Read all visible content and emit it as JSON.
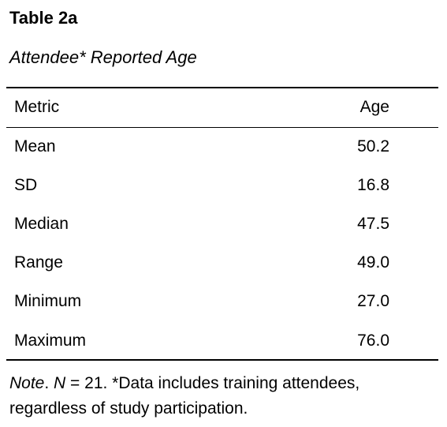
{
  "table": {
    "label": "Table 2a",
    "title": "Attendee* Reported Age",
    "columns": {
      "metric": "Metric",
      "age": "Age"
    },
    "rows": [
      {
        "metric": "Mean",
        "age": "50.2"
      },
      {
        "metric": "SD",
        "age": "16.8"
      },
      {
        "metric": "Median",
        "age": "47.5"
      },
      {
        "metric": "Range",
        "age": "49.0"
      },
      {
        "metric": "Minimum",
        "age": "27.0"
      },
      {
        "metric": "Maximum",
        "age": "76.0"
      }
    ]
  },
  "note": {
    "prefix": "Note",
    "period": ". ",
    "n_symbol": "N",
    "n_text": " = 21. ",
    "asterisk": "*",
    "text": "Data includes training attendees, regardless of study participation."
  }
}
